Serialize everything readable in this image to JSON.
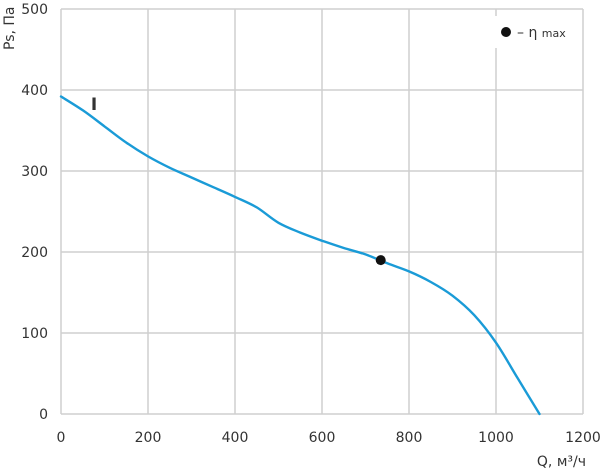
{
  "chart_data": {
    "type": "line",
    "xlabel": "Q, м³/ч",
    "ylabel": "Ps, Па",
    "xlim": [
      0,
      1200
    ],
    "ylim": [
      0,
      500
    ],
    "x_ticks": [
      "0",
      "200",
      "400",
      "600",
      "800",
      "1000",
      "1200"
    ],
    "y_ticks": [
      "0",
      "100",
      "200",
      "300",
      "400",
      "500"
    ],
    "grid": true,
    "legend_position": "top-right",
    "series": [
      {
        "label": "I",
        "color": "#1a9bd7",
        "points": [
          [
            0,
            392
          ],
          [
            50,
            375
          ],
          [
            100,
            355
          ],
          [
            150,
            335
          ],
          [
            200,
            318
          ],
          [
            250,
            304
          ],
          [
            300,
            292
          ],
          [
            350,
            280
          ],
          [
            400,
            268
          ],
          [
            450,
            255
          ],
          [
            500,
            236
          ],
          [
            550,
            224
          ],
          [
            600,
            214
          ],
          [
            650,
            205
          ],
          [
            700,
            197
          ],
          [
            750,
            186
          ],
          [
            800,
            176
          ],
          [
            850,
            163
          ],
          [
            900,
            146
          ],
          [
            950,
            122
          ],
          [
            1000,
            88
          ],
          [
            1050,
            44
          ],
          [
            1100,
            0
          ]
        ]
      }
    ],
    "marker": {
      "x": 735,
      "y": 190,
      "color": "#111111"
    },
    "legend": {
      "text": "– η",
      "subscript": "max"
    }
  }
}
